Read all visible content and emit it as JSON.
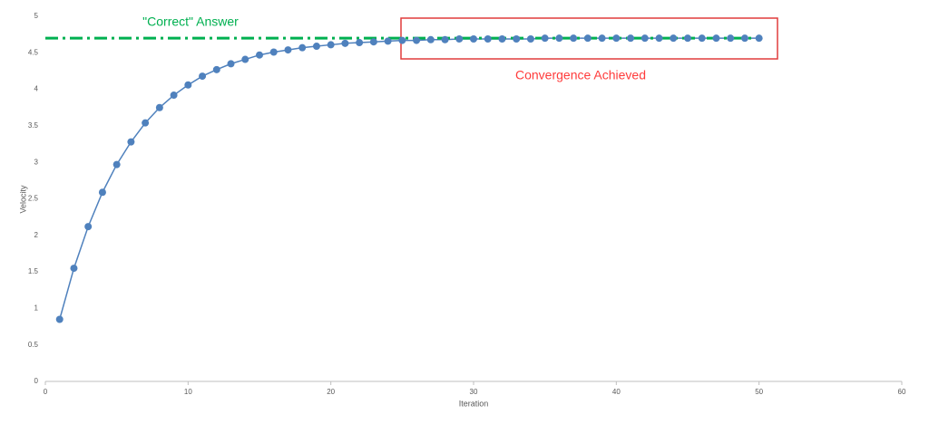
{
  "chart_data": {
    "type": "line",
    "x_label": "Iteration",
    "y_label": "Velocity",
    "x": [
      1,
      2,
      3,
      4,
      5,
      6,
      7,
      8,
      9,
      10,
      11,
      12,
      13,
      14,
      15,
      16,
      17,
      18,
      19,
      20,
      21,
      22,
      23,
      24,
      25,
      26,
      27,
      28,
      29,
      30,
      31,
      32,
      33,
      34,
      35,
      36,
      37,
      38,
      39,
      40,
      41,
      42,
      43,
      44,
      45,
      46,
      47,
      48,
      49,
      50
    ],
    "values": [
      0.85,
      1.55,
      2.12,
      2.59,
      2.97,
      3.28,
      3.54,
      3.75,
      3.92,
      4.06,
      4.18,
      4.27,
      4.35,
      4.41,
      4.47,
      4.51,
      4.54,
      4.57,
      4.59,
      4.61,
      4.63,
      4.64,
      4.65,
      4.66,
      4.67,
      4.67,
      4.68,
      4.68,
      4.69,
      4.69,
      4.69,
      4.69,
      4.69,
      4.69,
      4.7,
      4.7,
      4.7,
      4.7,
      4.7,
      4.7,
      4.7,
      4.7,
      4.7,
      4.7,
      4.7,
      4.7,
      4.7,
      4.7,
      4.7,
      4.7
    ],
    "color": "#4f81bd",
    "xlim": [
      0,
      60
    ],
    "xticks": [
      0,
      10,
      20,
      30,
      40,
      50,
      60
    ],
    "ylim": [
      0,
      5
    ],
    "yticks": [
      0,
      0.5,
      1,
      1.5,
      2,
      2.5,
      3,
      3.5,
      4,
      4.5,
      5
    ],
    "reference_line": {
      "value": 4.7,
      "x_end": 50,
      "label": "\"Correct\" Answer",
      "color": "#00b050"
    },
    "annotation": {
      "text": "Convergence Achieved",
      "color": "#ff3b3b"
    }
  }
}
